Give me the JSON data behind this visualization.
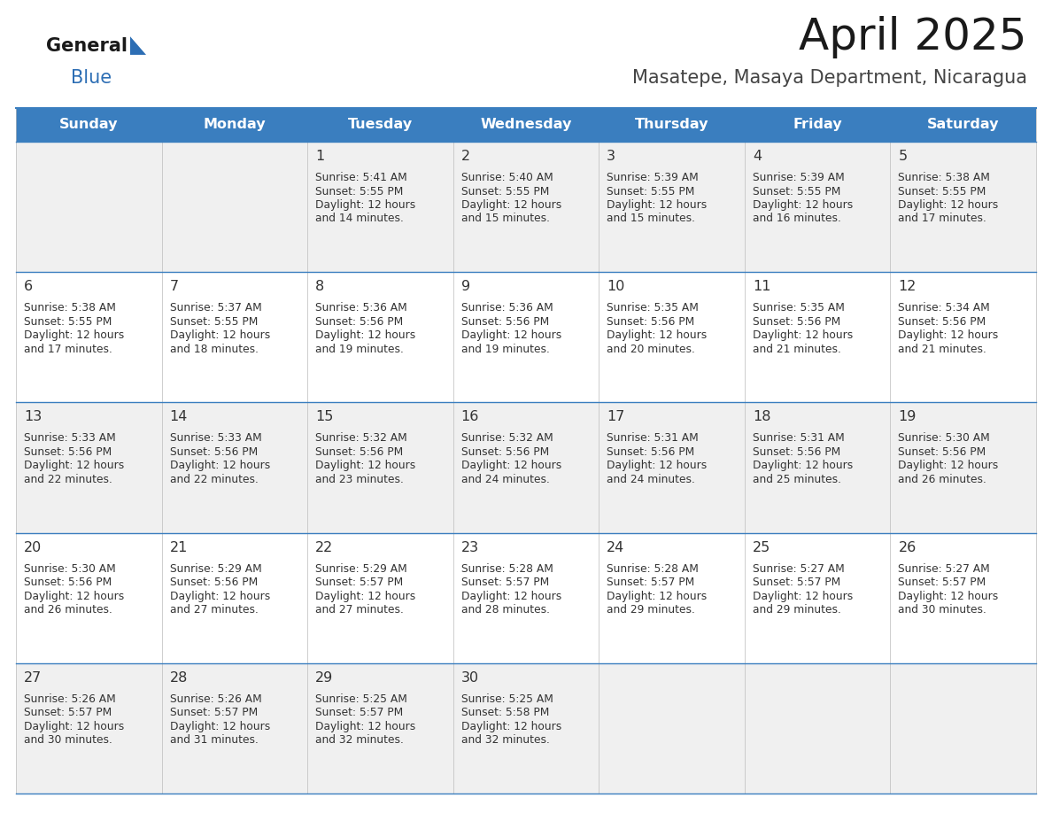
{
  "title": "April 2025",
  "subtitle": "Masatepe, Masaya Department, Nicaragua",
  "header_bg": "#3a7ebf",
  "header_text_color": "#ffffff",
  "row_bg_odd": "#f0f0f0",
  "row_bg_even": "#ffffff",
  "border_color": "#3a7ebf",
  "text_color": "#333333",
  "day_headers": [
    "Sunday",
    "Monday",
    "Tuesday",
    "Wednesday",
    "Thursday",
    "Friday",
    "Saturday"
  ],
  "weeks": [
    [
      {
        "day": "",
        "sunrise": "",
        "sunset": "",
        "daylight": ""
      },
      {
        "day": "",
        "sunrise": "",
        "sunset": "",
        "daylight": ""
      },
      {
        "day": "1",
        "sunrise": "5:41 AM",
        "sunset": "5:55 PM",
        "daylight": "12 hours and 14 minutes."
      },
      {
        "day": "2",
        "sunrise": "5:40 AM",
        "sunset": "5:55 PM",
        "daylight": "12 hours and 15 minutes."
      },
      {
        "day": "3",
        "sunrise": "5:39 AM",
        "sunset": "5:55 PM",
        "daylight": "12 hours and 15 minutes."
      },
      {
        "day": "4",
        "sunrise": "5:39 AM",
        "sunset": "5:55 PM",
        "daylight": "12 hours and 16 minutes."
      },
      {
        "day": "5",
        "sunrise": "5:38 AM",
        "sunset": "5:55 PM",
        "daylight": "12 hours and 17 minutes."
      }
    ],
    [
      {
        "day": "6",
        "sunrise": "5:38 AM",
        "sunset": "5:55 PM",
        "daylight": "12 hours and 17 minutes."
      },
      {
        "day": "7",
        "sunrise": "5:37 AM",
        "sunset": "5:55 PM",
        "daylight": "12 hours and 18 minutes."
      },
      {
        "day": "8",
        "sunrise": "5:36 AM",
        "sunset": "5:56 PM",
        "daylight": "12 hours and 19 minutes."
      },
      {
        "day": "9",
        "sunrise": "5:36 AM",
        "sunset": "5:56 PM",
        "daylight": "12 hours and 19 minutes."
      },
      {
        "day": "10",
        "sunrise": "5:35 AM",
        "sunset": "5:56 PM",
        "daylight": "12 hours and 20 minutes."
      },
      {
        "day": "11",
        "sunrise": "5:35 AM",
        "sunset": "5:56 PM",
        "daylight": "12 hours and 21 minutes."
      },
      {
        "day": "12",
        "sunrise": "5:34 AM",
        "sunset": "5:56 PM",
        "daylight": "12 hours and 21 minutes."
      }
    ],
    [
      {
        "day": "13",
        "sunrise": "5:33 AM",
        "sunset": "5:56 PM",
        "daylight": "12 hours and 22 minutes."
      },
      {
        "day": "14",
        "sunrise": "5:33 AM",
        "sunset": "5:56 PM",
        "daylight": "12 hours and 22 minutes."
      },
      {
        "day": "15",
        "sunrise": "5:32 AM",
        "sunset": "5:56 PM",
        "daylight": "12 hours and 23 minutes."
      },
      {
        "day": "16",
        "sunrise": "5:32 AM",
        "sunset": "5:56 PM",
        "daylight": "12 hours and 24 minutes."
      },
      {
        "day": "17",
        "sunrise": "5:31 AM",
        "sunset": "5:56 PM",
        "daylight": "12 hours and 24 minutes."
      },
      {
        "day": "18",
        "sunrise": "5:31 AM",
        "sunset": "5:56 PM",
        "daylight": "12 hours and 25 minutes."
      },
      {
        "day": "19",
        "sunrise": "5:30 AM",
        "sunset": "5:56 PM",
        "daylight": "12 hours and 26 minutes."
      }
    ],
    [
      {
        "day": "20",
        "sunrise": "5:30 AM",
        "sunset": "5:56 PM",
        "daylight": "12 hours and 26 minutes."
      },
      {
        "day": "21",
        "sunrise": "5:29 AM",
        "sunset": "5:56 PM",
        "daylight": "12 hours and 27 minutes."
      },
      {
        "day": "22",
        "sunrise": "5:29 AM",
        "sunset": "5:57 PM",
        "daylight": "12 hours and 27 minutes."
      },
      {
        "day": "23",
        "sunrise": "5:28 AM",
        "sunset": "5:57 PM",
        "daylight": "12 hours and 28 minutes."
      },
      {
        "day": "24",
        "sunrise": "5:28 AM",
        "sunset": "5:57 PM",
        "daylight": "12 hours and 29 minutes."
      },
      {
        "day": "25",
        "sunrise": "5:27 AM",
        "sunset": "5:57 PM",
        "daylight": "12 hours and 29 minutes."
      },
      {
        "day": "26",
        "sunrise": "5:27 AM",
        "sunset": "5:57 PM",
        "daylight": "12 hours and 30 minutes."
      }
    ],
    [
      {
        "day": "27",
        "sunrise": "5:26 AM",
        "sunset": "5:57 PM",
        "daylight": "12 hours and 30 minutes."
      },
      {
        "day": "28",
        "sunrise": "5:26 AM",
        "sunset": "5:57 PM",
        "daylight": "12 hours and 31 minutes."
      },
      {
        "day": "29",
        "sunrise": "5:25 AM",
        "sunset": "5:57 PM",
        "daylight": "12 hours and 32 minutes."
      },
      {
        "day": "30",
        "sunrise": "5:25 AM",
        "sunset": "5:58 PM",
        "daylight": "12 hours and 32 minutes."
      },
      {
        "day": "",
        "sunrise": "",
        "sunset": "",
        "daylight": ""
      },
      {
        "day": "",
        "sunrise": "",
        "sunset": "",
        "daylight": ""
      },
      {
        "day": "",
        "sunrise": "",
        "sunset": "",
        "daylight": ""
      }
    ]
  ],
  "logo_general_color": "#1a1a1a",
  "logo_blue_color": "#2d6eb4",
  "logo_triangle_color": "#2d6eb4",
  "fig_width": 11.88,
  "fig_height": 9.18,
  "dpi": 100
}
